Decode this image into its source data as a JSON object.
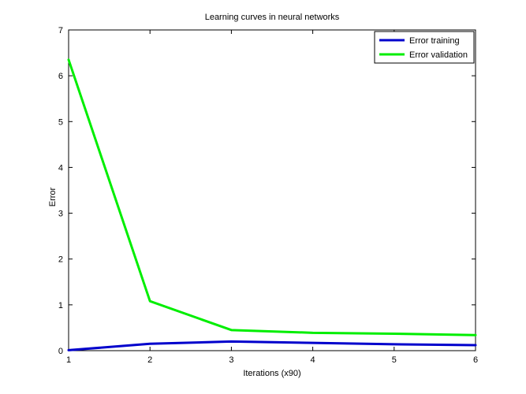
{
  "chart_data": {
    "type": "line",
    "title": "Learning curves in neural networks",
    "xlabel": "Iterations (x90)",
    "ylabel": "Error",
    "xlim": [
      1,
      6
    ],
    "ylim": [
      0,
      7
    ],
    "xticks": [
      1,
      2,
      3,
      4,
      5,
      6
    ],
    "yticks": [
      0,
      1,
      2,
      3,
      4,
      5,
      6,
      7
    ],
    "grid": false,
    "legend_position": "top-right",
    "x": [
      1,
      2,
      3,
      4,
      5,
      6
    ],
    "series": [
      {
        "name": "Error training",
        "color": "#0000cc",
        "values": [
          0.01,
          0.15,
          0.2,
          0.17,
          0.14,
          0.12
        ]
      },
      {
        "name": "Error validation",
        "color": "#00ee00",
        "values": [
          6.35,
          1.08,
          0.45,
          0.39,
          0.37,
          0.34
        ]
      }
    ]
  }
}
